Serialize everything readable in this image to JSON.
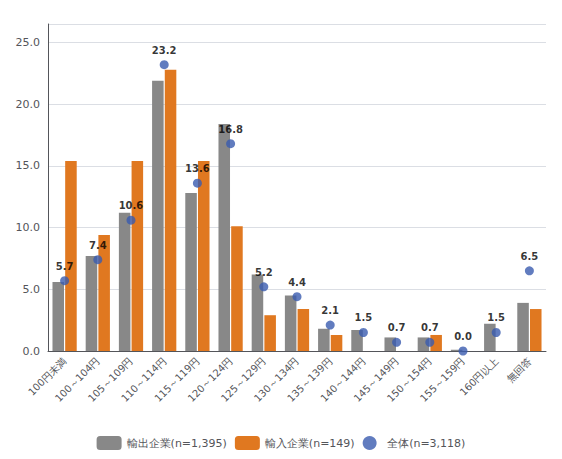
{
  "chart_data": {
    "type": "bar",
    "categories": [
      "100円未満",
      "100～104円",
      "105～109円",
      "110～114円",
      "115～119円",
      "120～124円",
      "125～129円",
      "130～134円",
      "135～139円",
      "140～144円",
      "145～149円",
      "150～154円",
      "155～159円",
      "160円以上",
      "無回答"
    ],
    "series": [
      {
        "name": "輸出企業(n=1,395)",
        "type": "bar",
        "color": "#888888",
        "values": [
          5.6,
          7.7,
          11.2,
          21.9,
          12.8,
          18.4,
          6.2,
          4.5,
          1.8,
          1.7,
          1.1,
          1.1,
          0.1,
          2.2,
          3.9
        ]
      },
      {
        "name": "輸入企業(n=149)",
        "type": "bar",
        "color": "#E07820",
        "values": [
          15.4,
          9.4,
          15.4,
          22.8,
          15.4,
          10.1,
          2.9,
          3.4,
          1.3,
          0.0,
          0.0,
          1.3,
          0.0,
          0.0,
          3.4
        ]
      },
      {
        "name": "全体(n=3,118)",
        "type": "scatter",
        "color": "#3A5BAF",
        "data_labels": true,
        "values": [
          5.7,
          7.4,
          10.6,
          23.2,
          13.6,
          16.8,
          5.2,
          4.4,
          2.1,
          1.5,
          0.7,
          0.7,
          0.0,
          1.5,
          6.5
        ],
        "value_labels": [
          "5.7",
          "7.4",
          "10.6",
          "23.2",
          "13.6",
          "16.8",
          "5.2",
          "4.4",
          "2.1",
          "1.5",
          "0.7",
          "0.7",
          "0.0",
          "1.5",
          "6.5"
        ]
      }
    ],
    "ylim": [
      0,
      26.5
    ],
    "yticks": [
      {
        "value": 0,
        "label": "0.0"
      },
      {
        "value": 5,
        "label": "5.0"
      },
      {
        "value": 10,
        "label": "10.0"
      },
      {
        "value": 15,
        "label": "15.0"
      },
      {
        "value": 20,
        "label": "20.0"
      },
      {
        "value": 25,
        "label": "25.0"
      }
    ],
    "grid": true,
    "legend": "bottom"
  }
}
